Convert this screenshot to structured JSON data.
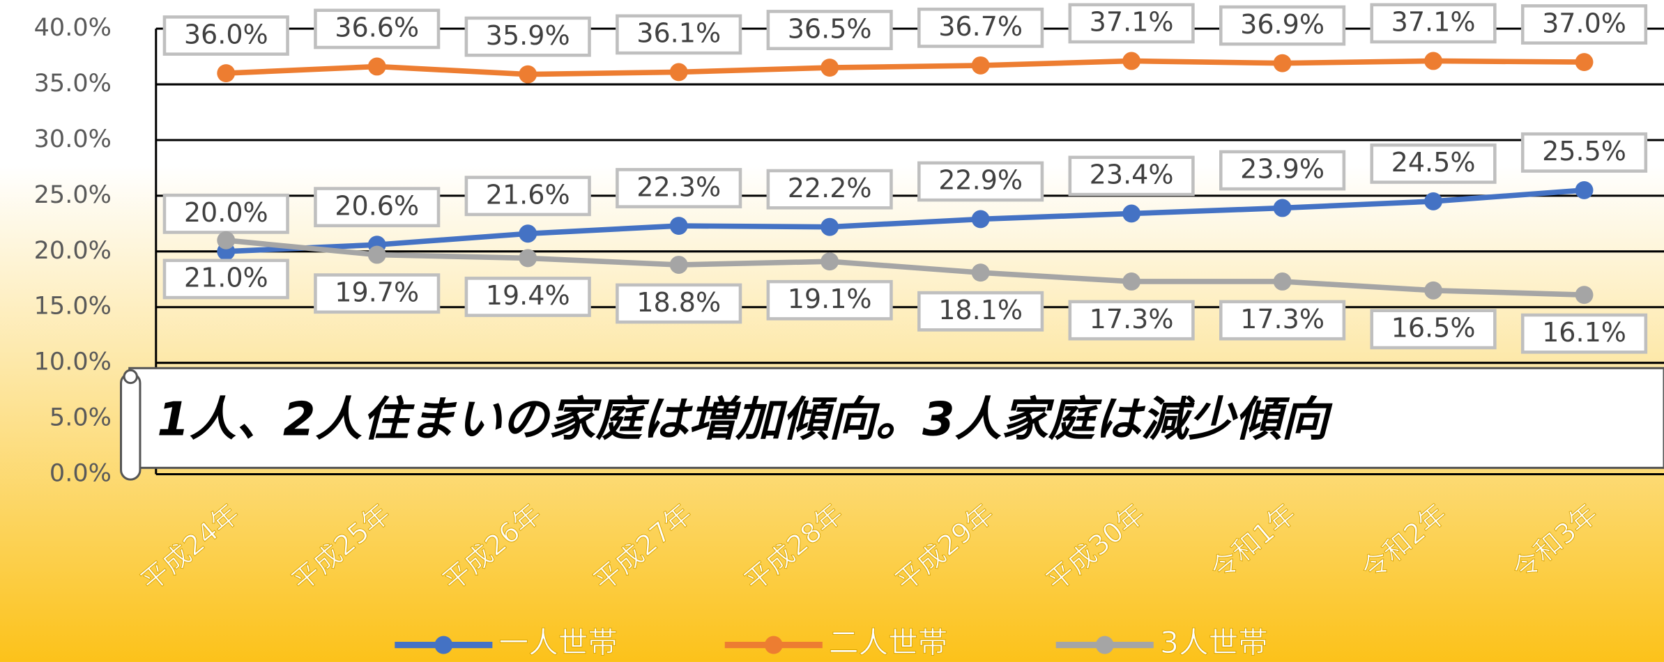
{
  "chart_data": {
    "type": "line",
    "categories": [
      "平成24年",
      "平成25年",
      "平成26年",
      "平成27年",
      "平成28年",
      "平成29年",
      "平成30年",
      "令和1年",
      "令和2年",
      "令和3年"
    ],
    "series": [
      {
        "name": "一人世帯",
        "color": "#4472c4",
        "values": [
          20.0,
          20.6,
          21.6,
          22.3,
          22.2,
          22.9,
          23.4,
          23.9,
          24.5,
          25.5
        ],
        "value_labels": [
          "20.0%",
          "20.6%",
          "21.6%",
          "22.3%",
          "22.2%",
          "22.9%",
          "23.4%",
          "23.9%",
          "24.5%",
          "25.5%"
        ]
      },
      {
        "name": "二人世帯",
        "color": "#ed7d31",
        "values": [
          36.0,
          36.6,
          35.9,
          36.1,
          36.5,
          36.7,
          37.1,
          36.9,
          37.1,
          37.0
        ],
        "value_labels": [
          "36.0%",
          "36.6%",
          "35.9%",
          "36.1%",
          "36.5%",
          "36.7%",
          "37.1%",
          "36.9%",
          "37.1%",
          "37.0%"
        ]
      },
      {
        "name": "3人世帯",
        "color": "#a5a5a5",
        "values": [
          21.0,
          19.7,
          19.4,
          18.8,
          19.1,
          18.1,
          17.3,
          17.3,
          16.5,
          16.1
        ],
        "value_labels": [
          "21.0%",
          "19.7%",
          "19.4%",
          "18.8%",
          "19.1%",
          "18.1%",
          "17.3%",
          "17.3%",
          "16.5%",
          "16.1%"
        ]
      }
    ],
    "ylim": [
      0,
      40
    ],
    "yticks": [
      {
        "value": 0,
        "label": "0.0%"
      },
      {
        "value": 5,
        "label": "5.0%"
      },
      {
        "value": 10,
        "label": "10.0%"
      },
      {
        "value": 15,
        "label": "15.0%"
      },
      {
        "value": 20,
        "label": "20.0%"
      },
      {
        "value": 25,
        "label": "25.0%"
      },
      {
        "value": 30,
        "label": "30.0%"
      },
      {
        "value": 35,
        "label": "35.0%"
      },
      {
        "value": 40,
        "label": "40.0%"
      }
    ],
    "grid": true,
    "legend": "bottom",
    "annotation": "1人、2人住まいの家庭は増加傾向。3人家庭は減少傾向"
  }
}
